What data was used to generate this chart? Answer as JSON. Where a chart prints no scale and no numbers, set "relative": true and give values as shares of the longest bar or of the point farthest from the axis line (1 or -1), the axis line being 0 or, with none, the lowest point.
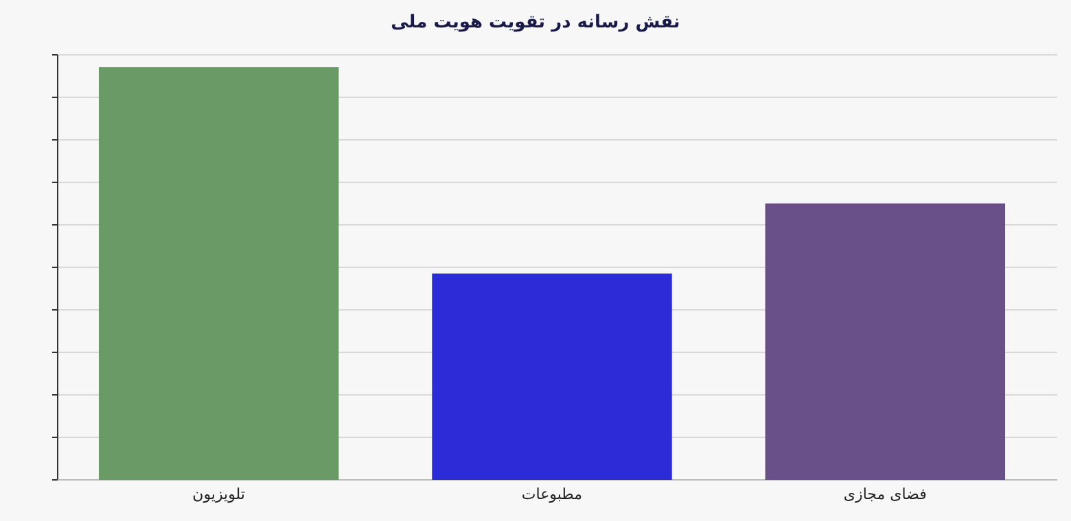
{
  "chart_data": {
    "type": "bar",
    "title": "نقش رسانه در تقویت هویت ملی",
    "categories": [
      "تلویزیون",
      "مطبوعات",
      "فضای مجازی"
    ],
    "values": [
      1,
      0.5,
      0.67
    ],
    "colors": [
      "#6a9a66",
      "#2b2bd8",
      "#6a5088"
    ],
    "relative": true,
    "grid": true
  }
}
